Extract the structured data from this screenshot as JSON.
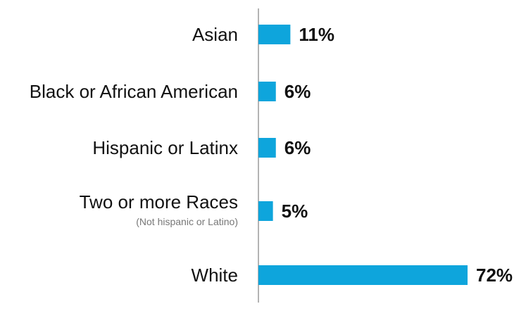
{
  "chart_data": {
    "type": "bar",
    "orientation": "horizontal",
    "categories": [
      "Asian",
      "Black or African American",
      "Hispanic or Latinx",
      "Two or more Races",
      "White"
    ],
    "category_notes": [
      "",
      "",
      "",
      "(Not hispanic or Latino)",
      ""
    ],
    "values": [
      11,
      6,
      6,
      5,
      72
    ],
    "value_labels": [
      "11%",
      "6%",
      "6%",
      "5%",
      "72%"
    ],
    "xlim": [
      0,
      72
    ],
    "grid": false,
    "bar_color": "#0ea5dc",
    "axis_color": "#9a9a9a"
  }
}
